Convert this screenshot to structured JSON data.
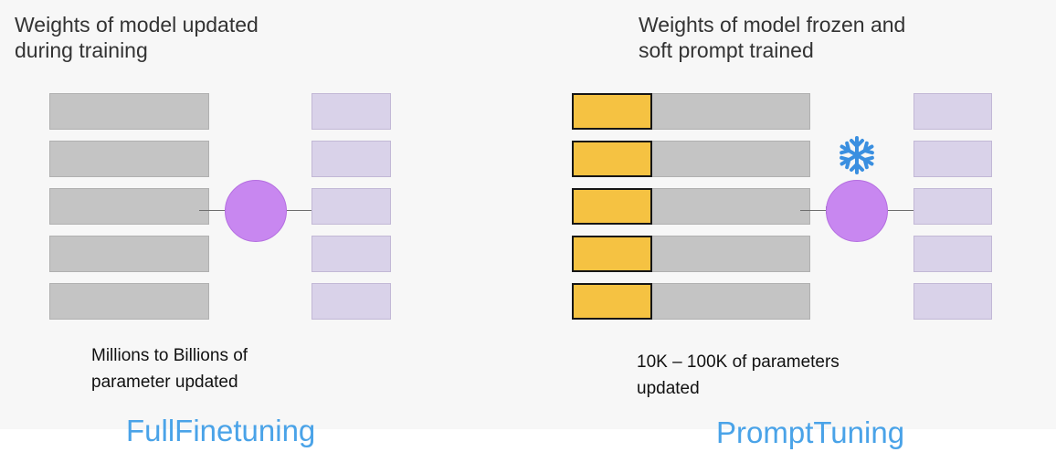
{
  "full_finetuning": {
    "title": "Weights of model updated\nduring training",
    "note": "Millions to Billions of\nparameter updated",
    "caption": "FullFinetuning"
  },
  "prompt_tuning": {
    "title": "Weights of model frozen and\nsoft prompt trained",
    "note": "10K – 100K of parameters\nupdated",
    "caption": "PromptTuning",
    "frozen_icon": "snowflake-icon"
  },
  "colors": {
    "model_weights": "#c4c4c4",
    "soft_prompt": "#f5c242",
    "output": "#d9d2e9",
    "node": "#c887f0",
    "caption": "#4aa3e8",
    "snowflake": "#3a8fe0"
  }
}
